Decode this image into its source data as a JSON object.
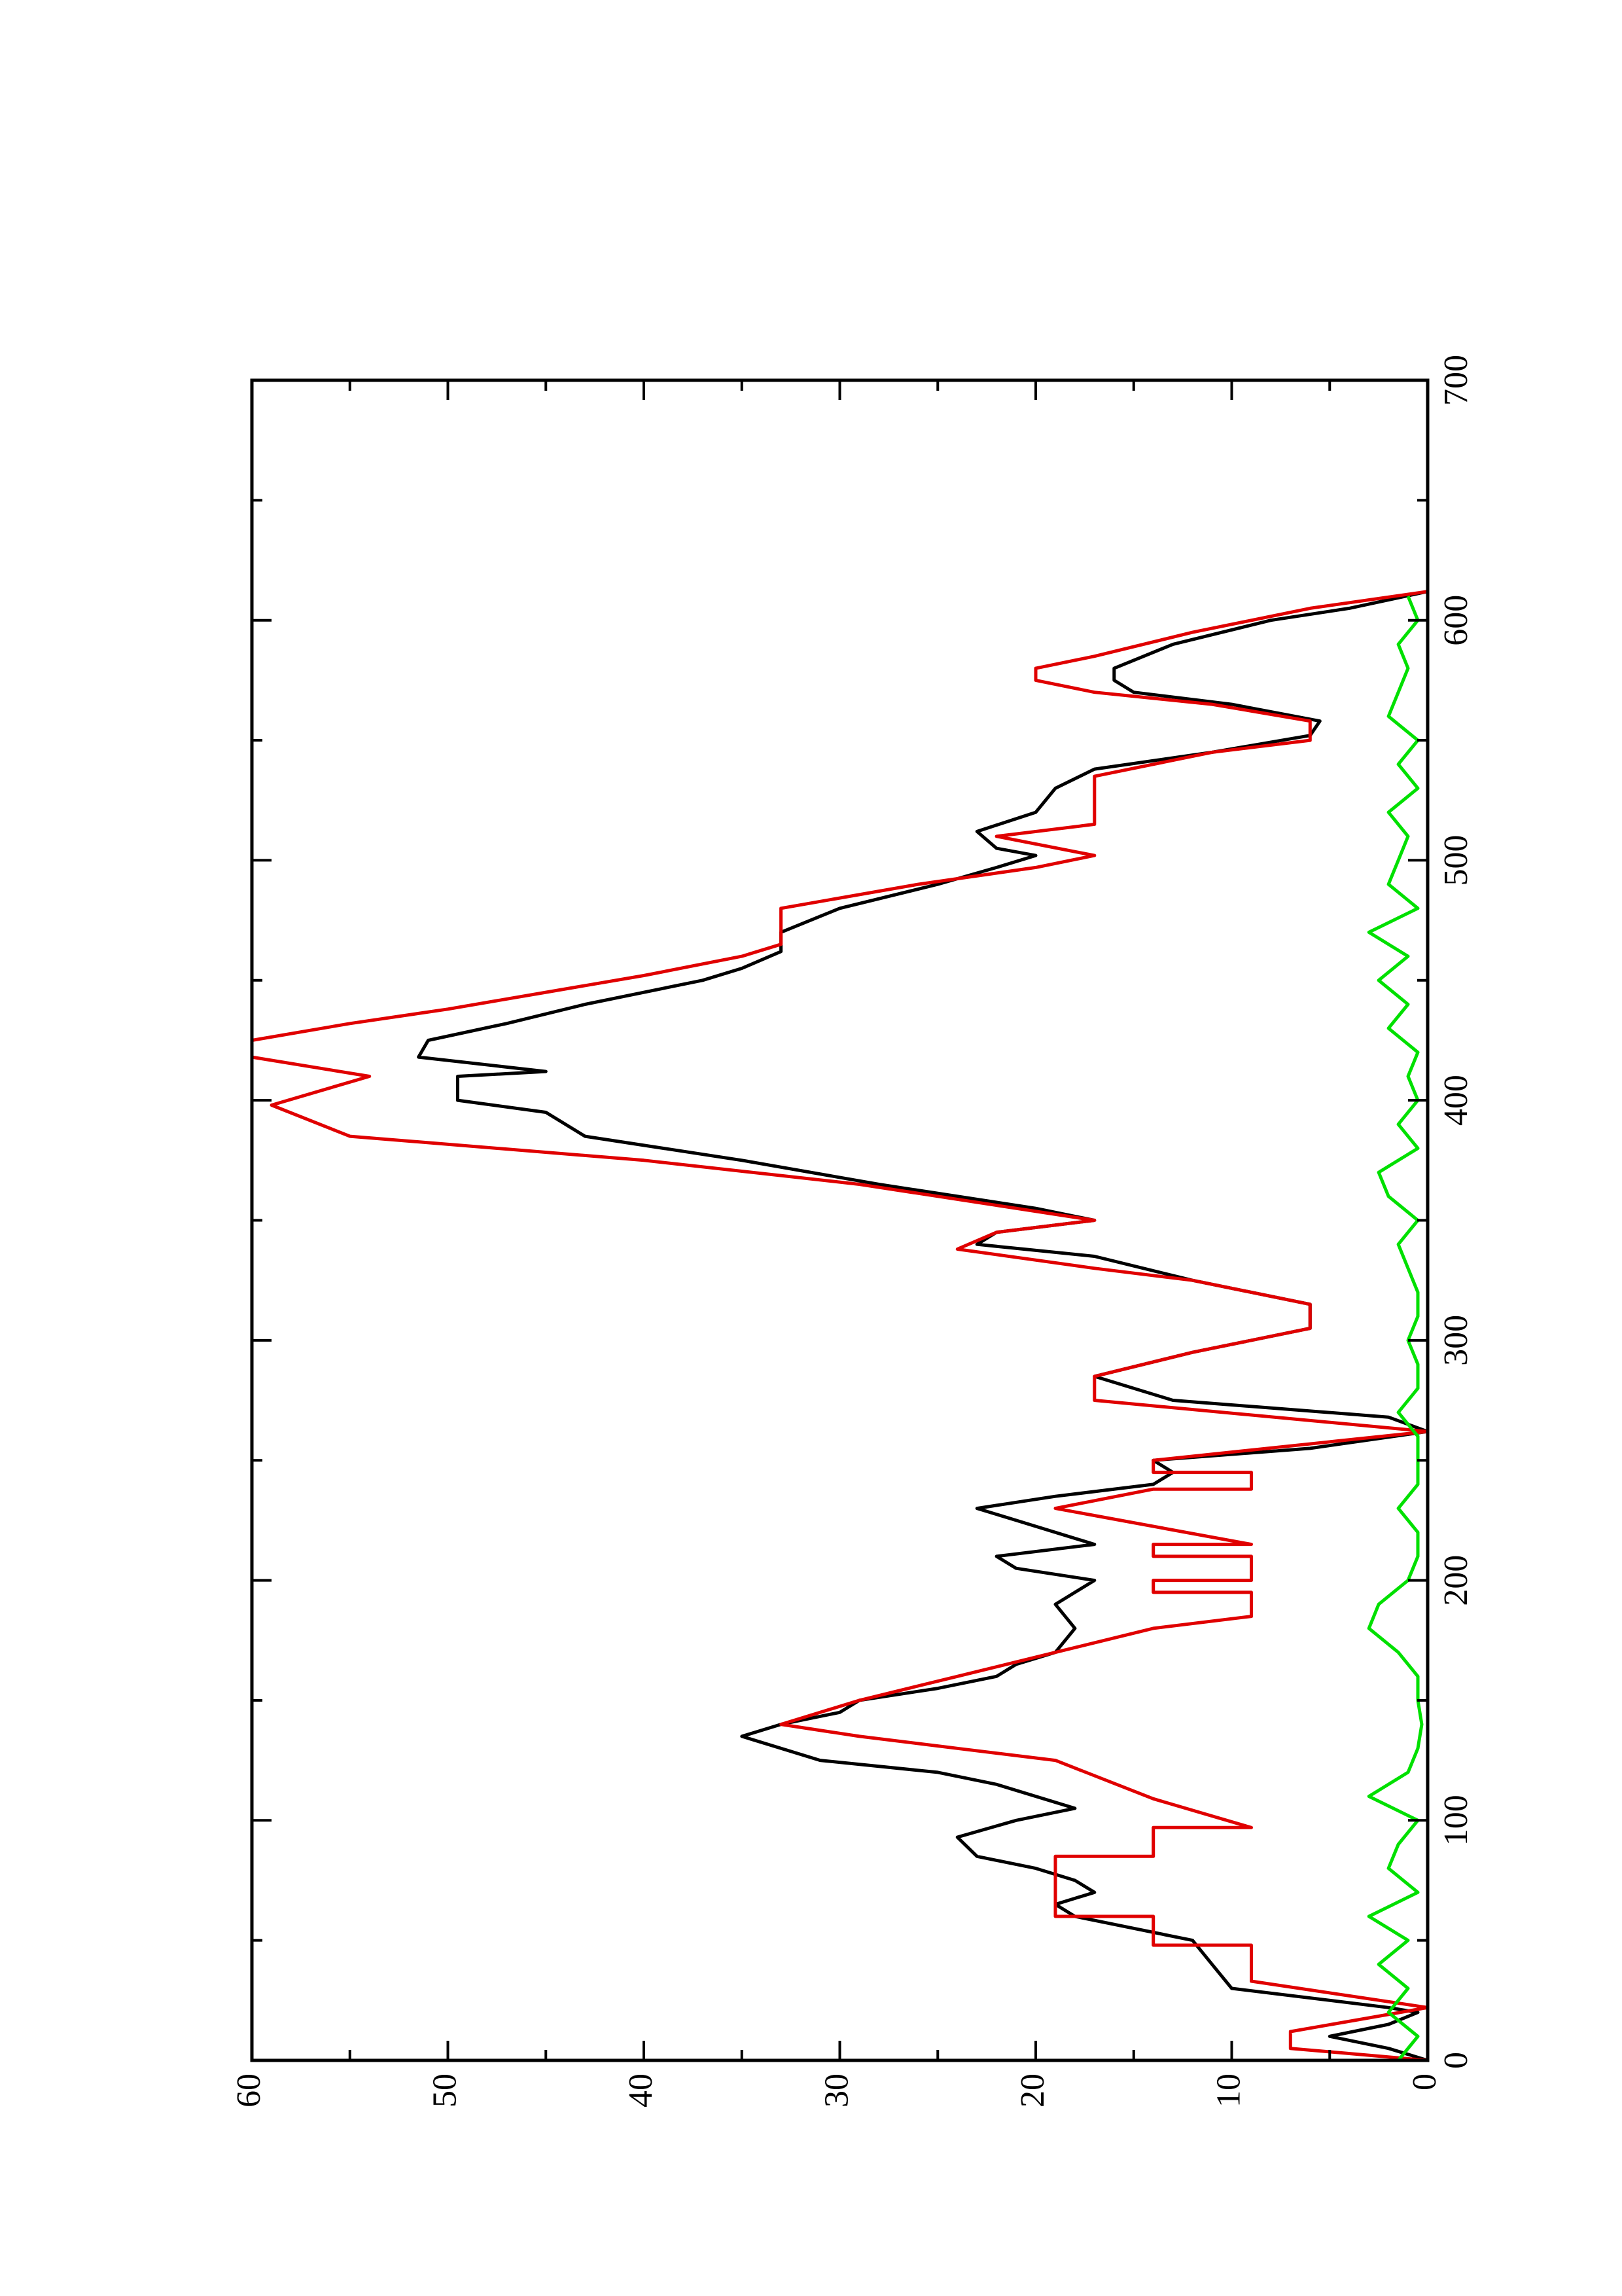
{
  "chart_data": {
    "type": "line",
    "xlim": [
      0,
      700
    ],
    "xticks": [
      0,
      100,
      200,
      300,
      400,
      500,
      600,
      700
    ],
    "ylim": [
      0,
      60
    ],
    "yticks": [
      0,
      10,
      20,
      30,
      40,
      50,
      60
    ],
    "rotated": true,
    "series": [
      {
        "color": "#000000",
        "x": [
          0,
          5,
          10,
          15,
          20,
          22,
          30,
          40,
          50,
          55,
          60,
          65,
          70,
          75,
          80,
          85,
          93,
          100,
          105,
          115,
          120,
          125,
          135,
          140,
          145,
          150,
          155,
          160,
          165,
          170,
          180,
          190,
          195,
          200,
          205,
          210,
          215,
          225,
          230,
          235,
          240,
          245,
          250,
          255,
          262,
          268,
          275,
          285,
          295,
          305,
          315,
          325,
          335,
          340,
          345,
          350,
          355,
          365,
          375,
          385,
          395,
          400,
          410,
          412,
          418,
          425,
          432,
          440,
          450,
          455,
          462,
          470,
          480,
          490,
          497,
          502,
          505,
          512,
          520,
          530,
          538,
          545,
          552,
          558,
          565,
          570,
          575,
          580,
          590,
          600,
          605,
          612
        ],
        "values": [
          0,
          2,
          5,
          2,
          0.5,
          2,
          10,
          11,
          12,
          15,
          18,
          19,
          17,
          18,
          20,
          23,
          24,
          21,
          18,
          22,
          25,
          31,
          35,
          33,
          30,
          29,
          25,
          22,
          21,
          19,
          18,
          19,
          18,
          17,
          21,
          22,
          17,
          21,
          23,
          19,
          14,
          13,
          14,
          6,
          0,
          2,
          13,
          17,
          12,
          6,
          6,
          12,
          17,
          23,
          22,
          17,
          20,
          28,
          35,
          43,
          45,
          49.5,
          49.5,
          45,
          51.5,
          51,
          47,
          43,
          37,
          35,
          33,
          33,
          30,
          25,
          22,
          20,
          22,
          23,
          20,
          19,
          17,
          11,
          6,
          5.5,
          10,
          15,
          16,
          16,
          13,
          8,
          4,
          0
        ]
      },
      {
        "color": "#e00000",
        "x": [
          0,
          5,
          12,
          22,
          33,
          48,
          48,
          60,
          60,
          85,
          85,
          97,
          97,
          109,
          125,
          130,
          135,
          140,
          150,
          160,
          170,
          180,
          185,
          195,
          195,
          200,
          200,
          210,
          210,
          215,
          215,
          230,
          238,
          238,
          245,
          245,
          250,
          262,
          275,
          285,
          295,
          305,
          315,
          325,
          330,
          338,
          345,
          350,
          365,
          375,
          385,
          398,
          410,
          418,
          425,
          432,
          438,
          445,
          452,
          460,
          465,
          480,
          490,
          497,
          502,
          510,
          515,
          535,
          545,
          550,
          558,
          565,
          570,
          575,
          580,
          585,
          595,
          605,
          612
        ],
        "values": [
          0,
          7,
          7,
          0,
          9,
          9,
          14,
          14,
          19,
          19,
          14,
          14,
          9,
          14,
          19,
          24,
          29,
          33,
          29,
          24,
          19,
          14,
          9,
          9,
          14,
          14,
          9,
          9,
          14,
          14,
          9,
          19,
          14,
          9,
          9,
          14,
          14,
          0,
          17,
          17,
          12,
          6,
          6,
          12,
          17,
          24,
          22,
          17,
          29,
          40,
          55,
          59,
          54,
          60,
          60,
          55,
          50,
          45,
          40,
          35,
          33,
          33,
          26,
          20,
          17,
          22,
          17,
          17,
          11,
          6,
          6,
          11,
          17,
          20,
          20,
          17,
          12,
          6,
          0
        ]
      },
      {
        "color": "#00e000",
        "x": [
          0,
          10,
          20,
          30,
          40,
          50,
          60,
          70,
          80,
          90,
          100,
          110,
          120,
          130,
          140,
          150,
          160,
          170,
          180,
          190,
          200,
          210,
          220,
          230,
          240,
          250,
          260,
          270,
          280,
          290,
          300,
          310,
          320,
          330,
          340,
          350,
          360,
          370,
          380,
          390,
          400,
          410,
          420,
          430,
          440,
          450,
          460,
          470,
          480,
          490,
          500,
          510,
          520,
          530,
          540,
          550,
          560,
          570,
          580,
          590,
          600,
          610
        ],
        "values": [
          1.5,
          0.5,
          2,
          1,
          2.5,
          1,
          3,
          0.5,
          2,
          1.5,
          0.5,
          3,
          1,
          0.5,
          0.3,
          0.5,
          0.5,
          1.5,
          3,
          2.5,
          1,
          0.5,
          0.5,
          1.5,
          0.5,
          0.5,
          0.5,
          1.5,
          0.5,
          0.5,
          1,
          0.5,
          0.5,
          1,
          1.5,
          0.5,
          2,
          2.5,
          0.5,
          1.5,
          0.5,
          1,
          0.5,
          2,
          1,
          2.5,
          1,
          3,
          0.5,
          2,
          1.5,
          1,
          2,
          0.5,
          1.5,
          0.5,
          2,
          1.5,
          1,
          1.5,
          0.5,
          1
        ]
      }
    ]
  }
}
